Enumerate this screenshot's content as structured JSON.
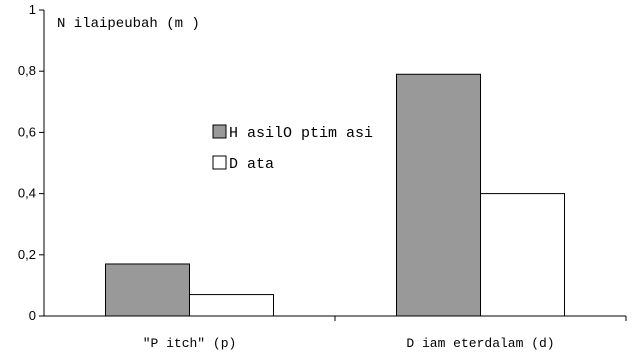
{
  "chart_data": {
    "type": "bar",
    "ylabel": "N ilaipeubah (m )",
    "categories": [
      "\"P itch\" (p)",
      "D iam eterdalam (d)"
    ],
    "series": [
      {
        "name": "H asilO ptim asi",
        "values": [
          0.17,
          0.79
        ],
        "color": "#999999"
      },
      {
        "name": "D ata",
        "values": [
          0.07,
          0.4
        ],
        "color": "#ffffff"
      }
    ],
    "ylim": [
      0,
      1
    ],
    "yticks": [
      {
        "value": 0,
        "label": "0"
      },
      {
        "value": 0.2,
        "label": "0,2"
      },
      {
        "value": 0.4,
        "label": "0,4"
      },
      {
        "value": 0.6,
        "label": "0,6"
      },
      {
        "value": 0.8,
        "label": "0,8"
      },
      {
        "value": 1,
        "label": "1"
      }
    ],
    "grid": false,
    "legend_position": "center"
  }
}
